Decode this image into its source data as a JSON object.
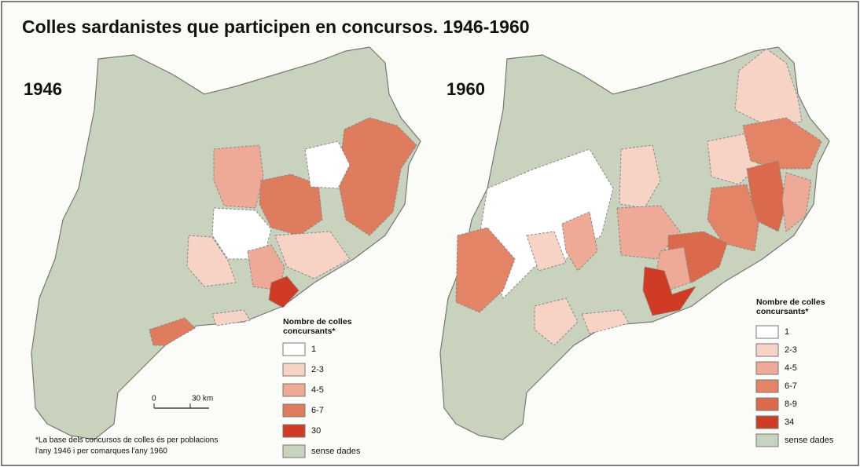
{
  "title": "Colles sardanistes que participen en concursos. 1946-1960",
  "maps": [
    {
      "year": "1946",
      "legend": {
        "title": [
          "Nombre de colles",
          "concursants*"
        ],
        "items": [
          {
            "label": "1",
            "color": "#ffffff"
          },
          {
            "label": "2-3",
            "color": "#f7d3c6"
          },
          {
            "label": "4-5",
            "color": "#eeaa96"
          },
          {
            "label": "6-7",
            "color": "#e07c5e"
          },
          {
            "label": "30",
            "color": "#cf3b25"
          },
          {
            "label": "sense dades",
            "color": "#c8d2bd"
          }
        ]
      }
    },
    {
      "year": "1960",
      "legend": {
        "title": [
          "Nombre de colles",
          "concursants*"
        ],
        "items": [
          {
            "label": "1",
            "color": "#ffffff"
          },
          {
            "label": "2-3",
            "color": "#f7d3c6"
          },
          {
            "label": "4-5",
            "color": "#eeaa96"
          },
          {
            "label": "6-7",
            "color": "#e38467"
          },
          {
            "label": "8-9",
            "color": "#db6a4c"
          },
          {
            "label": "34",
            "color": "#cf3b25"
          },
          {
            "label": "sense dades",
            "color": "#c8d2bd"
          }
        ]
      }
    }
  ],
  "scale": {
    "start": "0",
    "end": "30 km"
  },
  "footnote": [
    "*La base dels concursos de colles és per poblacions",
    "l'any 1946 i per comarques l'any 1960"
  ]
}
